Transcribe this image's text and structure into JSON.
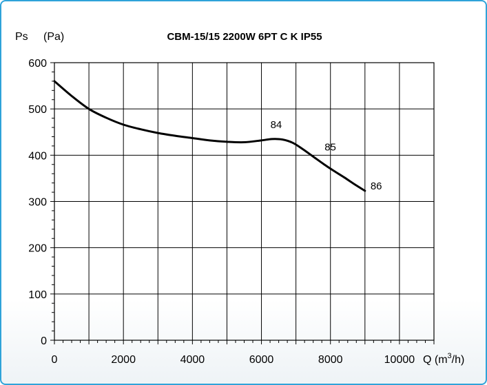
{
  "chart_data": {
    "type": "line",
    "title": "CBM-15/15 2200W 6PT C K IP55",
    "ylabel_symbol": "Ps",
    "ylabel_unit": "(Pa)",
    "xlabel_prefix": "Q (m",
    "xlabel_sup": "3",
    "xlabel_suffix": "/h)",
    "xlim": [
      0,
      11000
    ],
    "ylim": [
      0,
      600
    ],
    "x_ticks": [
      0,
      2000,
      4000,
      6000,
      8000,
      10000
    ],
    "y_ticks": [
      0,
      100,
      200,
      300,
      400,
      500,
      600
    ],
    "grid": true,
    "series": [
      {
        "x": [
          0,
          500,
          1000,
          1500,
          2000,
          2500,
          3000,
          3500,
          4000,
          4500,
          5000,
          5500,
          6000,
          6300,
          6600,
          6900,
          7200,
          7500,
          7800,
          8100,
          8400,
          8700,
          9000
        ],
        "y": [
          560,
          528,
          500,
          481,
          466,
          456,
          448,
          442,
          437,
          432,
          429,
          428,
          432,
          435,
          434,
          427,
          413,
          397,
          381,
          366,
          352,
          337,
          323
        ]
      }
    ],
    "annotations": [
      {
        "text": "84",
        "x": 6300,
        "y": 435
      },
      {
        "text": "85",
        "x": 7750,
        "y": 398
      },
      {
        "text": "86",
        "x": 9000,
        "y": 323
      }
    ]
  }
}
